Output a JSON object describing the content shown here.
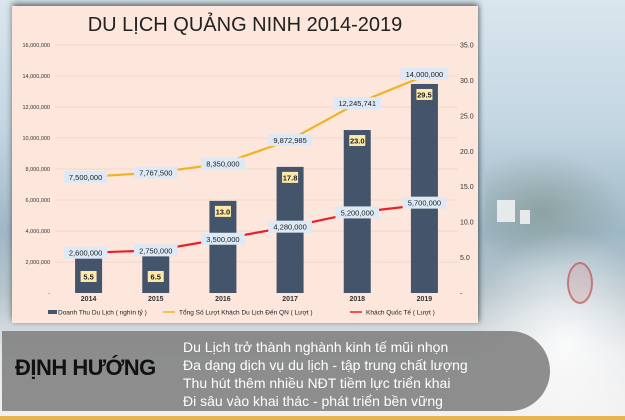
{
  "chart_data": {
    "type": "bar",
    "title": "DU LỊCH QUẢNG NINH 2014-2019",
    "categories": [
      "2014",
      "2015",
      "2016",
      "2017",
      "2018",
      "2019"
    ],
    "xlabel": "",
    "ylabel": "",
    "y_left": {
      "range": [
        0,
        16000000
      ],
      "ticks": [
        0,
        2000000,
        4000000,
        6000000,
        8000000,
        10000000,
        12000000,
        14000000,
        16000000
      ],
      "tick_labels": [
        "-",
        "2,000,000",
        "4,000,000",
        "6,000,000",
        "8,000,000",
        "10,000,000",
        "12,000,000",
        "14,000,000",
        "16,000,000"
      ]
    },
    "y_right": {
      "range": [
        0,
        35
      ],
      "ticks": [
        0,
        5,
        10,
        15,
        20,
        25,
        30,
        35
      ],
      "tick_labels": [
        "-",
        "5.0",
        "10.0",
        "15.0",
        "20.0",
        "25.0",
        "30.0",
        "35.0"
      ]
    },
    "grid": true,
    "legend_position": "bottom",
    "series": [
      {
        "name": "Doanh Thu Du Lịch ( nghìn tỷ )",
        "type": "bar",
        "axis": "right",
        "color": "#44546a",
        "values": [
          5.5,
          6.5,
          13.0,
          17.8,
          23.0,
          29.5
        ],
        "labels": [
          "5.5",
          "6.5",
          "13.0",
          "17.8",
          "23.0",
          "29.5"
        ]
      },
      {
        "name": "Tổng Số Lượt Khách Du Lịch Đến QN ( Lượt )",
        "type": "line",
        "axis": "left",
        "color": "#f0b323",
        "values": [
          7500000,
          7767500,
          8350000,
          9872985,
          12245741,
          14000000
        ],
        "labels": [
          "7,500,000",
          "7,767,500",
          "8,350,000",
          "9,872,985",
          "12,245,741",
          "14,000,000"
        ]
      },
      {
        "name": "Khách Quốc Tế ( Lượt )",
        "type": "line",
        "axis": "left",
        "color": "#e8202a",
        "values": [
          2600000,
          2750000,
          3500000,
          4280000,
          5200000,
          5700000
        ],
        "labels": [
          "2,600,000",
          "2,750,000",
          "3,500,000",
          "4,280,000",
          "5,200,000",
          "5,700,000"
        ]
      }
    ]
  },
  "direction": {
    "title": "ĐỊNH HƯỚNG",
    "items": [
      "Du Lịch trở thành nghành kinh tế mũi nhọn",
      "Đa dạng dịch vụ du lịch - tập trung chất lượng",
      "Thu hút thêm nhiều NĐT tiềm lực triển khai",
      "Đi sâu vào khai thác - phát triển bền vững"
    ]
  },
  "colors": {
    "panel_bg": "#fde6dc",
    "bar_label_bg": "#fde9a8",
    "line_label_bg": "#dde9f5",
    "accent_bottom": "#e8b450"
  }
}
